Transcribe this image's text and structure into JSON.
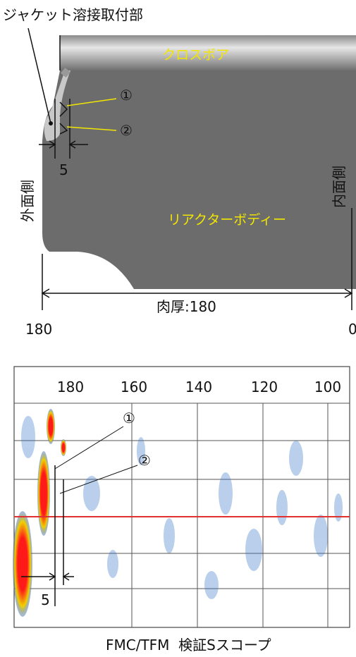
{
  "top_diagram": {
    "weld_label": "ジャケット溶接取付部",
    "cross_bore": "クロスボア",
    "marker_1": "①",
    "marker_2": "②",
    "gap_label": "5",
    "outer_side": "外面側",
    "inner_side": "内面側",
    "body": "リアクターボディー",
    "thickness": "肉厚:180",
    "left_scale": "180",
    "right_scale": "0"
  },
  "scan": {
    "ticks": [
      "180",
      "160",
      "140",
      "120",
      "100"
    ],
    "marker_1": "①",
    "marker_2": "②",
    "gap_label": "5",
    "caption": "FMC/TFM  検証Sスコープ"
  }
}
